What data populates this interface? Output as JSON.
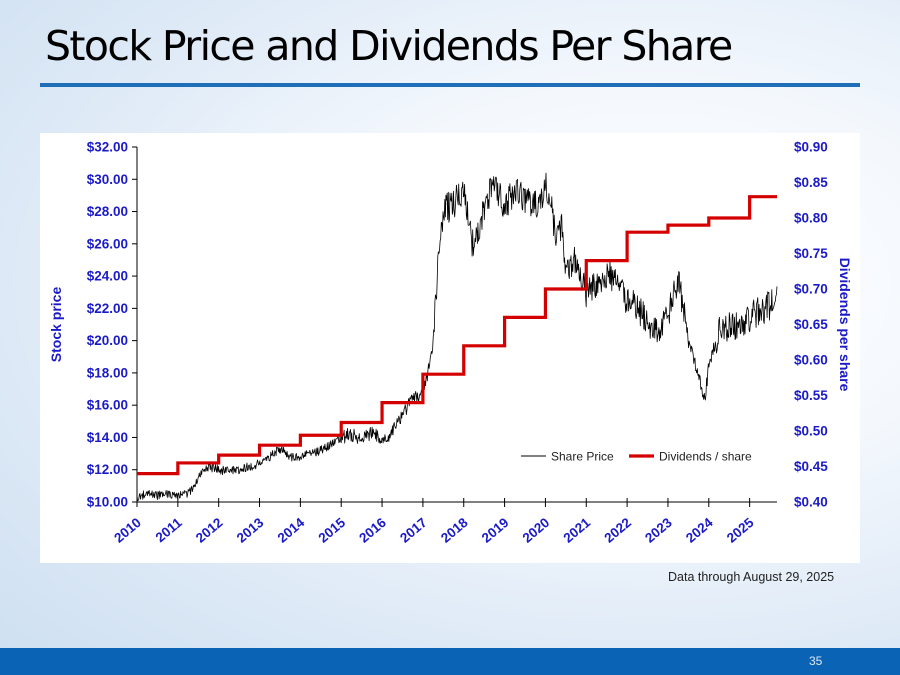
{
  "slide": {
    "title": "Stock Price and Dividends Per Share",
    "note": "Data through August 29, 2025",
    "page_number": "35"
  },
  "colors": {
    "title_rule": "#1f6fb8",
    "footer": "#0b63b6",
    "axis_label": "#1a1ac8",
    "price_line": "#000000",
    "dividend_line": "#d40000"
  },
  "chart_data": {
    "type": "line",
    "title": "Stock Price and Dividends Per Share",
    "x_ticks": [
      "2010",
      "2011",
      "2012",
      "2013",
      "2014",
      "2015",
      "2016",
      "2017",
      "2018",
      "2019",
      "2020",
      "2021",
      "2022",
      "2023",
      "2024",
      "2025"
    ],
    "xlim": [
      2010,
      2025.67
    ],
    "left_axis": {
      "label": "Stock price",
      "ylim": [
        10,
        32
      ],
      "ticks": [
        "$10.00",
        "$12.00",
        "$14.00",
        "$16.00",
        "$18.00",
        "$20.00",
        "$22.00",
        "$24.00",
        "$26.00",
        "$28.00",
        "$30.00",
        "$32.00"
      ],
      "tick_values": [
        10,
        12,
        14,
        16,
        18,
        20,
        22,
        24,
        26,
        28,
        30,
        32
      ]
    },
    "right_axis": {
      "label": "Dividends per share",
      "ylim": [
        0.4,
        0.9
      ],
      "ticks": [
        "$0.40",
        "$0.45",
        "$0.50",
        "$0.55",
        "$0.60",
        "$0.65",
        "$0.70",
        "$0.75",
        "$0.80",
        "$0.85",
        "$0.90"
      ],
      "tick_values": [
        0.4,
        0.45,
        0.5,
        0.55,
        0.6,
        0.65,
        0.7,
        0.75,
        0.8,
        0.85,
        0.9
      ]
    },
    "legend": [
      "Share Price",
      "Dividends / share"
    ],
    "legend_position": "lower-right",
    "series": [
      {
        "name": "Share Price",
        "axis": "left",
        "x": [
          2010.0,
          2010.25,
          2010.5,
          2010.75,
          2011.0,
          2011.25,
          2011.5,
          2011.75,
          2012.0,
          2012.25,
          2012.5,
          2012.75,
          2013.0,
          2013.25,
          2013.5,
          2013.75,
          2014.0,
          2014.25,
          2014.5,
          2014.75,
          2015.0,
          2015.25,
          2015.5,
          2015.75,
          2016.0,
          2016.25,
          2016.5,
          2016.75,
          2017.0,
          2017.1,
          2017.25,
          2017.4,
          2017.5,
          2017.75,
          2018.0,
          2018.15,
          2018.25,
          2018.5,
          2018.75,
          2019.0,
          2019.25,
          2019.5,
          2019.75,
          2020.0,
          2020.1,
          2020.25,
          2020.4,
          2020.5,
          2020.75,
          2021.0,
          2021.25,
          2021.5,
          2021.75,
          2022.0,
          2022.25,
          2022.5,
          2022.75,
          2023.0,
          2023.25,
          2023.5,
          2023.75,
          2023.9,
          2024.0,
          2024.25,
          2024.5,
          2024.75,
          2025.0,
          2025.25,
          2025.5,
          2025.67
        ],
        "values": [
          10.3,
          10.5,
          10.4,
          10.5,
          10.4,
          10.5,
          11.5,
          12.2,
          12.0,
          11.9,
          12.0,
          12.2,
          12.4,
          12.8,
          13.3,
          12.8,
          12.8,
          13.0,
          13.2,
          13.6,
          14.0,
          14.2,
          13.9,
          14.3,
          13.8,
          14.4,
          15.5,
          16.4,
          16.6,
          17.8,
          20.5,
          25.5,
          28.0,
          28.5,
          29.3,
          27.0,
          25.5,
          28.2,
          29.8,
          28.4,
          29.2,
          28.8,
          28.3,
          29.5,
          29.2,
          26.5,
          27.2,
          24.5,
          25.2,
          23.0,
          23.5,
          24.2,
          23.8,
          22.5,
          22.0,
          21.2,
          20.5,
          21.5,
          23.8,
          20.0,
          18.0,
          16.2,
          18.5,
          20.5,
          21.0,
          20.8,
          21.5,
          21.8,
          22.2,
          22.9
        ]
      },
      {
        "name": "Dividends / share",
        "axis": "right",
        "x": [
          2010,
          2011,
          2012,
          2013,
          2014,
          2015,
          2016,
          2017,
          2018,
          2019,
          2020,
          2021,
          2022,
          2023,
          2024,
          2025,
          2025.67
        ],
        "values": [
          0.44,
          0.455,
          0.466,
          0.48,
          0.494,
          0.512,
          0.54,
          0.58,
          0.62,
          0.66,
          0.7,
          0.74,
          0.78,
          0.79,
          0.8,
          0.83,
          0.83
        ]
      }
    ]
  }
}
